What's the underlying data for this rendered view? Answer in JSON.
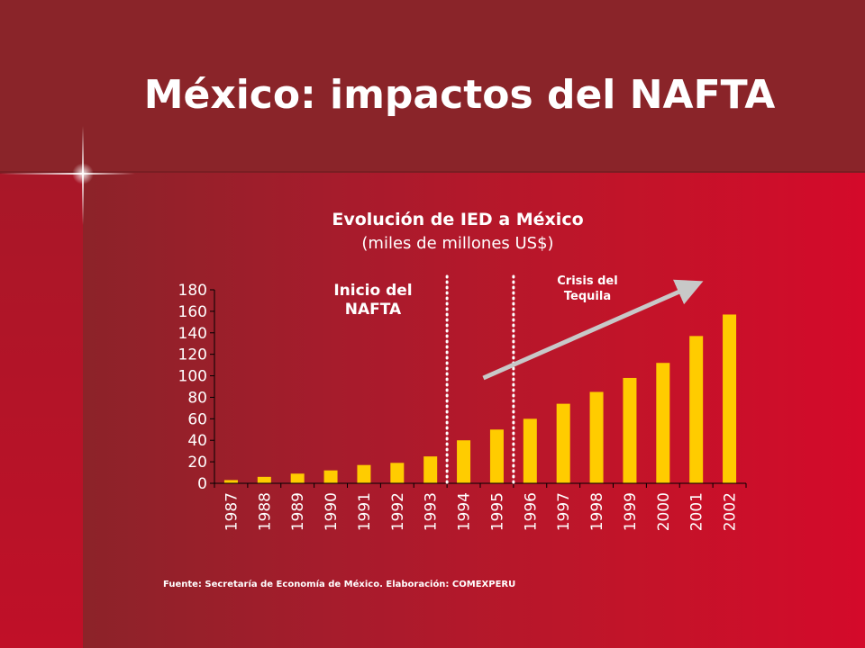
{
  "slide": {
    "title": "México: impactos del NAFTA",
    "source": "Fuente: Secretaría de Economía de México. Elaboración: COMEXPERU"
  },
  "colors": {
    "bar": "#ffcc00",
    "text": "#ffffff",
    "arrow": "#c8c8c8"
  },
  "chart_data": {
    "type": "bar",
    "title": "Evolución de IED a México",
    "subtitle": "(miles de millones US$)",
    "categories": [
      "1987",
      "1988",
      "1989",
      "1990",
      "1991",
      "1992",
      "1993",
      "1994",
      "1995",
      "1996",
      "1997",
      "1998",
      "1999",
      "2000",
      "2001",
      "2002"
    ],
    "values": [
      3,
      6,
      9,
      12,
      17,
      19,
      25,
      40,
      50,
      60,
      74,
      85,
      98,
      112,
      137,
      157
    ],
    "ylim": [
      0,
      180
    ],
    "yticks": [
      0,
      20,
      40,
      60,
      80,
      100,
      120,
      140,
      160,
      180
    ],
    "grid": false,
    "annotations": [
      {
        "text_lines": [
          "Inicio del",
          "NAFTA"
        ],
        "after_category": "1993"
      },
      {
        "text_lines": [
          "Crisis del",
          "Tequila"
        ],
        "after_category": "1995"
      }
    ],
    "trend_arrow": {
      "from_category": "1995",
      "to_category": "2001",
      "direction": "up"
    }
  }
}
